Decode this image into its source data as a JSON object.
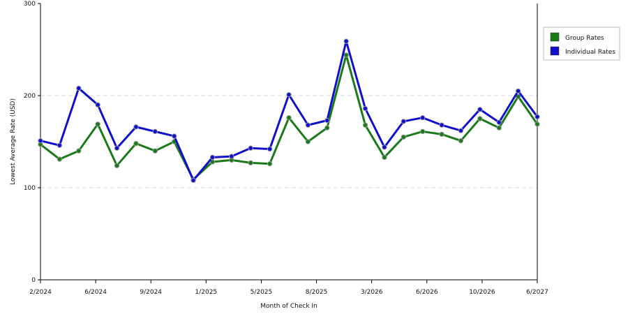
{
  "chart_data": {
    "type": "line",
    "xlabel": "Month of Check In",
    "ylabel": "Lowest Average Rate (USD)",
    "ylim": [
      0,
      300
    ],
    "yticks": [
      0,
      100,
      200,
      300
    ],
    "grid": "horizontal dashed at 100 and 200",
    "legend_position": "right",
    "x_tick_labels": [
      "2/2024",
      "6/2024",
      "9/2024",
      "1/2025",
      "5/2025",
      "8/2025",
      "3/2026",
      "6/2026",
      "10/2026",
      "6/2027"
    ],
    "series": [
      {
        "name": "Group Rates",
        "color": "#1a7a1a",
        "values": [
          147,
          131,
          140,
          169,
          124,
          148,
          140,
          150,
          109,
          128,
          130,
          127,
          126,
          176,
          150,
          165,
          244,
          168,
          133,
          155,
          161,
          158,
          151,
          175,
          165,
          199,
          169
        ]
      },
      {
        "name": "Individual Rates",
        "color": "#1010cc",
        "values": [
          151,
          146,
          208,
          190,
          143,
          166,
          161,
          156,
          108,
          133,
          134,
          143,
          142,
          201,
          168,
          173,
          259,
          186,
          144,
          172,
          176,
          168,
          162,
          185,
          171,
          205,
          177
        ]
      }
    ]
  }
}
